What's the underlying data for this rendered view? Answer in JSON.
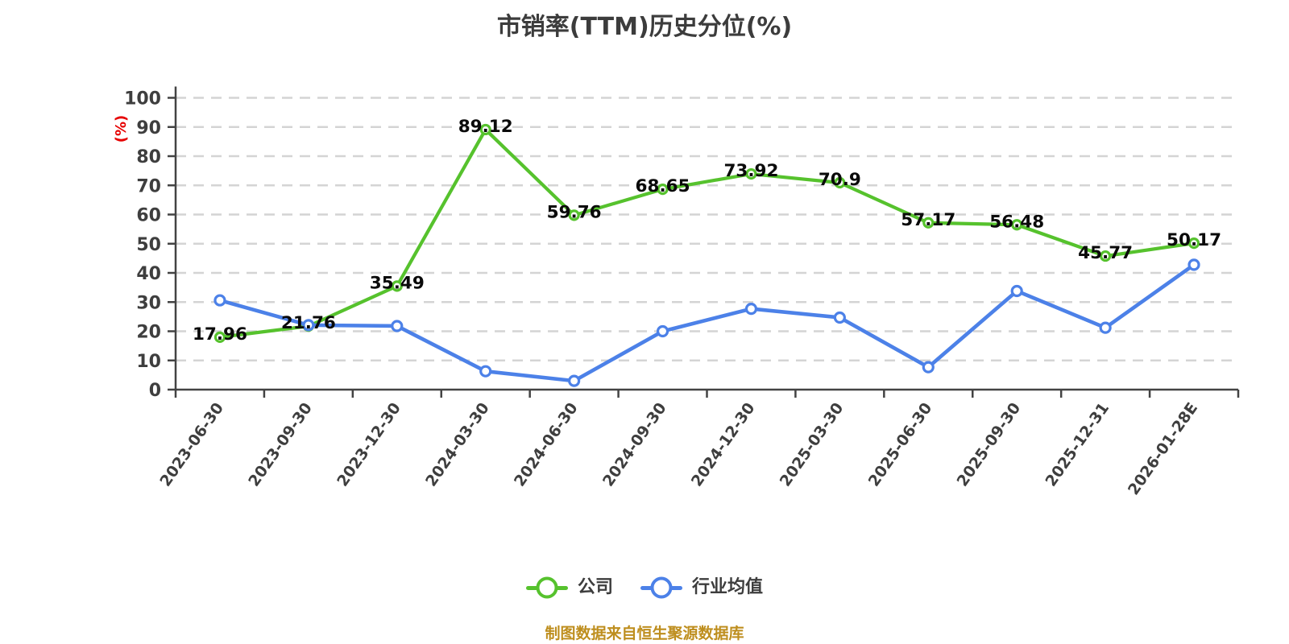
{
  "colors": {
    "company_green": "#56C22D",
    "industry_blue": "#4C81E8",
    "axis_gray": "#434343",
    "grid_gray": "#D4D4D4",
    "tick_text_gray": "#3E3E3E",
    "value_label_black": "#0A0A0A",
    "unit_label_red": "#E60000",
    "footer_gold": "#BE8E1E",
    "background": "#FFFFFF",
    "marker_fill": "#FFFFFF"
  },
  "chart_data": {
    "type": "line",
    "title": "市销率(TTM)历史分位(%)",
    "ylabel": "(%)",
    "source_note": "制图数据来自恒生聚源数据库",
    "categories": [
      "2023-06-30",
      "2023-09-30",
      "2023-12-30",
      "2024-03-30",
      "2024-06-30",
      "2024-09-30",
      "2024-12-30",
      "2025-03-30",
      "2025-06-30",
      "2025-09-30",
      "2025-12-31",
      "2026-01-28E"
    ],
    "series": [
      {
        "key": "company",
        "name": "公司",
        "color": "#56C22D",
        "data_labels": true,
        "values": [
          17.96,
          21.76,
          35.49,
          89.12,
          59.76,
          68.65,
          73.92,
          70.9,
          57.17,
          56.48,
          45.77,
          50.17
        ]
      },
      {
        "key": "industry",
        "name": "行业均值",
        "color": "#4C81E8",
        "data_labels": false,
        "values": [
          30.6,
          22.1,
          21.8,
          6.3,
          3.0,
          20.0,
          27.7,
          24.7,
          7.7,
          33.8,
          21.2,
          42.8
        ]
      }
    ],
    "ylim": [
      0,
      100
    ],
    "y_tick_step": 10,
    "grid": "horizontal-dashed",
    "x_label_rotation_deg": 55,
    "legend_position": "bottom"
  }
}
